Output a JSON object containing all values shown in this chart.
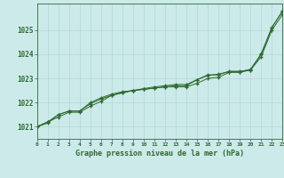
{
  "title": "Graphe pression niveau de la mer (hPa)",
  "x_labels": [
    0,
    1,
    2,
    3,
    4,
    5,
    6,
    7,
    8,
    9,
    10,
    11,
    12,
    13,
    14,
    15,
    16,
    17,
    18,
    19,
    20,
    21,
    22,
    23
  ],
  "series1": [
    1021.0,
    1021.2,
    1021.4,
    1021.6,
    1021.6,
    1021.85,
    1022.05,
    1022.3,
    1022.4,
    1022.5,
    1022.55,
    1022.6,
    1022.65,
    1022.65,
    1022.65,
    1022.8,
    1023.0,
    1023.05,
    1023.25,
    1023.25,
    1023.35,
    1023.9,
    1025.0,
    1025.65
  ],
  "series2": [
    1021.0,
    1021.2,
    1021.5,
    1021.65,
    1021.65,
    1022.0,
    1022.2,
    1022.35,
    1022.45,
    1022.5,
    1022.55,
    1022.6,
    1022.65,
    1022.7,
    1022.7,
    1022.95,
    1023.15,
    1023.15,
    1023.3,
    1023.3,
    1023.35,
    1024.0,
    1025.1,
    1025.8
  ],
  "series3": [
    1021.0,
    1021.15,
    1021.5,
    1021.65,
    1021.65,
    1021.95,
    1022.15,
    1022.3,
    1022.42,
    1022.5,
    1022.58,
    1022.65,
    1022.7,
    1022.75,
    1022.75,
    1022.95,
    1023.12,
    1023.18,
    1023.28,
    1023.28,
    1023.38,
    1024.02,
    1025.12,
    1025.78
  ],
  "line_color": "#2d6a2d",
  "background_color": "#cceaea",
  "grid_color": "#b0d8d8",
  "ylim": [
    1020.5,
    1026.1
  ],
  "yticks": [
    1021,
    1022,
    1023,
    1024,
    1025
  ],
  "xlim": [
    0,
    23
  ]
}
